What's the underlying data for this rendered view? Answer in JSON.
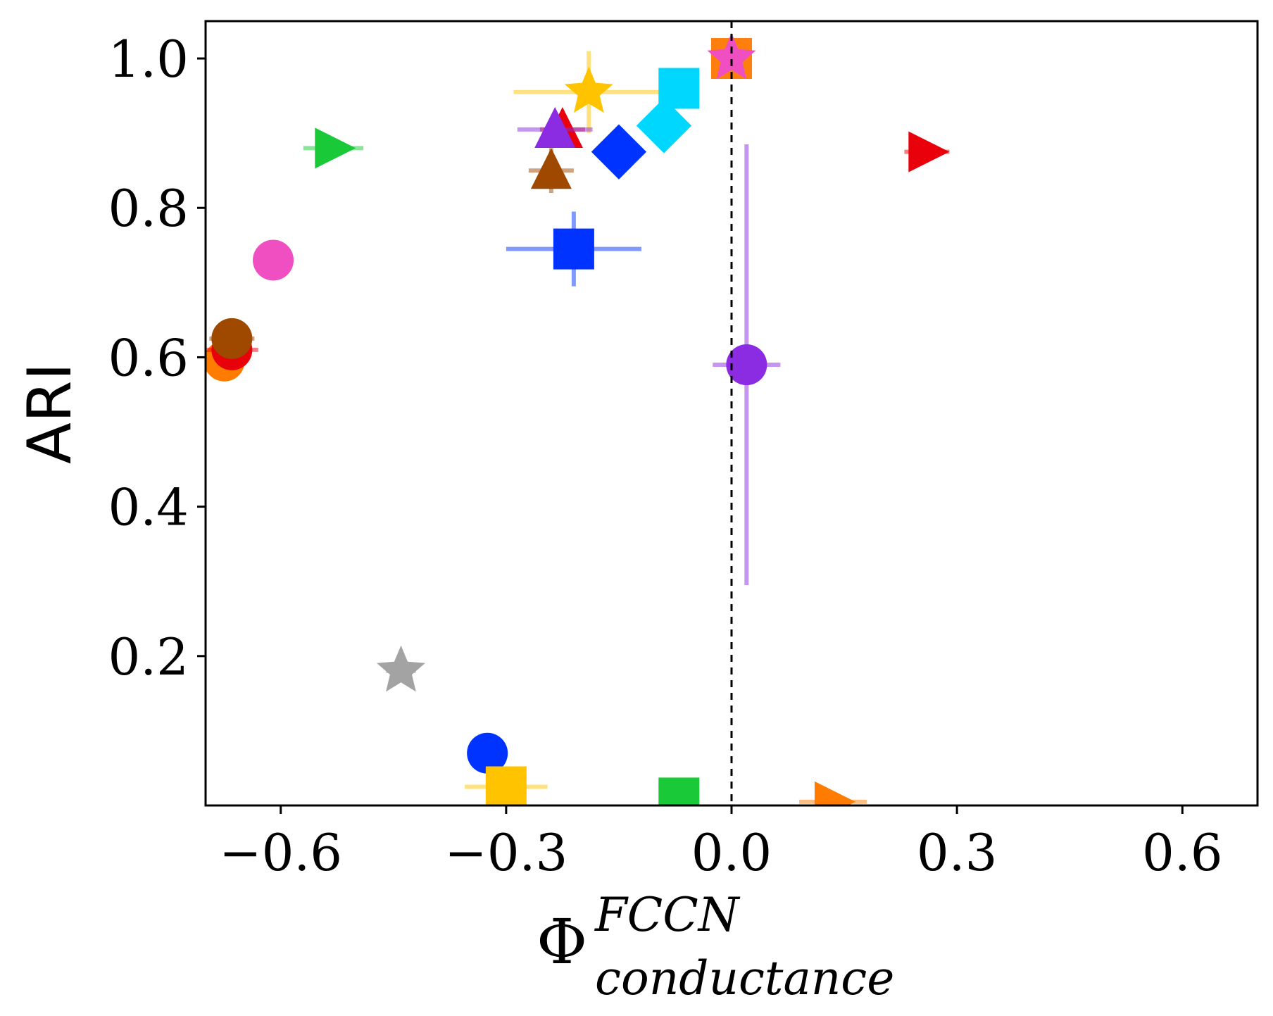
{
  "chart_data": {
    "type": "scatter",
    "title": "",
    "ylabel": "ARI",
    "xlabel": {
      "main": "Φ",
      "sup": "FCCN",
      "sub": "conductance"
    },
    "xlim": [
      -0.7,
      0.7
    ],
    "ylim": [
      0.0,
      1.05
    ],
    "xticks": [
      -0.6,
      -0.3,
      0.0,
      0.3,
      0.6
    ],
    "xtick_labels": [
      "−0.6",
      "−0.3",
      "0.0",
      "0.3",
      "0.6"
    ],
    "yticks": [
      0.2,
      0.4,
      0.6,
      0.8,
      1.0
    ],
    "ytick_labels": [
      "0.2",
      "0.4",
      "0.6",
      "0.8",
      "1.0"
    ],
    "grid": false,
    "reference_line": {
      "x": 0.0,
      "style": "dashed",
      "color": "#000000"
    },
    "points": [
      {
        "x": 0.0,
        "y": 1.0,
        "xerr": 0,
        "yerr": 0,
        "marker": "circle",
        "color": "#9e9e9e"
      },
      {
        "x": 0.0,
        "y": 1.0,
        "xerr": 0,
        "yerr": 0,
        "marker": "square",
        "color": "#ff7f0e"
      },
      {
        "x": 0.0,
        "y": 1.0,
        "xerr": 0.01,
        "yerr": 0,
        "marker": "star",
        "color": "#f04fc1"
      },
      {
        "x": -0.19,
        "y": 0.955,
        "xerr": 0.1,
        "yerr": 0.055,
        "marker": "star",
        "color": "#ffc300"
      },
      {
        "x": -0.07,
        "y": 0.96,
        "xerr": 0,
        "yerr": 0,
        "marker": "square",
        "color": "#00d7ff"
      },
      {
        "x": -0.09,
        "y": 0.91,
        "xerr": 0,
        "yerr": 0,
        "marker": "diamond",
        "color": "#00d7ff"
      },
      {
        "x": -0.15,
        "y": 0.875,
        "xerr": 0,
        "yerr": 0,
        "marker": "diamond",
        "color": "#0033ff"
      },
      {
        "x": -0.225,
        "y": 0.905,
        "xerr": 0.03,
        "yerr": 0,
        "marker": "triangle",
        "color": "#e8000b"
      },
      {
        "x": -0.235,
        "y": 0.905,
        "xerr": 0.05,
        "yerr": 0,
        "marker": "triangle",
        "color": "#8b2be2"
      },
      {
        "x": -0.24,
        "y": 0.85,
        "xerr": 0.03,
        "yerr": 0.03,
        "marker": "triangle",
        "color": "#9f4800"
      },
      {
        "x": -0.21,
        "y": 0.745,
        "xerr": 0.09,
        "yerr": 0.05,
        "marker": "square",
        "color": "#0033ff"
      },
      {
        "x": -0.53,
        "y": 0.88,
        "xerr": 0.04,
        "yerr": 0,
        "marker": "triangle-right",
        "color": "#1ac938"
      },
      {
        "x": 0.26,
        "y": 0.875,
        "xerr": 0.03,
        "yerr": 0,
        "marker": "triangle-right",
        "color": "#e8000b"
      },
      {
        "x": -0.61,
        "y": 0.73,
        "xerr": 0.025,
        "yerr": 0,
        "marker": "circle",
        "color": "#f04fc1"
      },
      {
        "x": 0.02,
        "y": 0.59,
        "xerr": 0.045,
        "yerr": 0.295,
        "marker": "circle",
        "color": "#8b2be2"
      },
      {
        "x": -0.675,
        "y": 0.595,
        "xerr": 0,
        "yerr": 0,
        "marker": "circle",
        "color": "#ff7c00"
      },
      {
        "x": -0.665,
        "y": 0.61,
        "xerr": 0.035,
        "yerr": 0,
        "marker": "circle",
        "color": "#e8000b"
      },
      {
        "x": -0.665,
        "y": 0.625,
        "xerr": 0.03,
        "yerr": 0,
        "marker": "circle",
        "color": "#9f4800"
      },
      {
        "x": -0.44,
        "y": 0.18,
        "xerr": 0.02,
        "yerr": 0,
        "marker": "star",
        "color": "#a3a3a3"
      },
      {
        "x": -0.325,
        "y": 0.07,
        "xerr": 0,
        "yerr": 0,
        "marker": "circle",
        "color": "#0033ff"
      },
      {
        "x": -0.3,
        "y": 0.025,
        "xerr": 0.055,
        "yerr": 0,
        "marker": "square",
        "color": "#ffc300"
      },
      {
        "x": -0.07,
        "y": 0.01,
        "xerr": 0,
        "yerr": 0,
        "marker": "square",
        "color": "#1ac938"
      },
      {
        "x": 0.135,
        "y": 0.005,
        "xerr": 0.045,
        "yerr": 0,
        "marker": "triangle-right",
        "color": "#ff7c00"
      }
    ]
  }
}
